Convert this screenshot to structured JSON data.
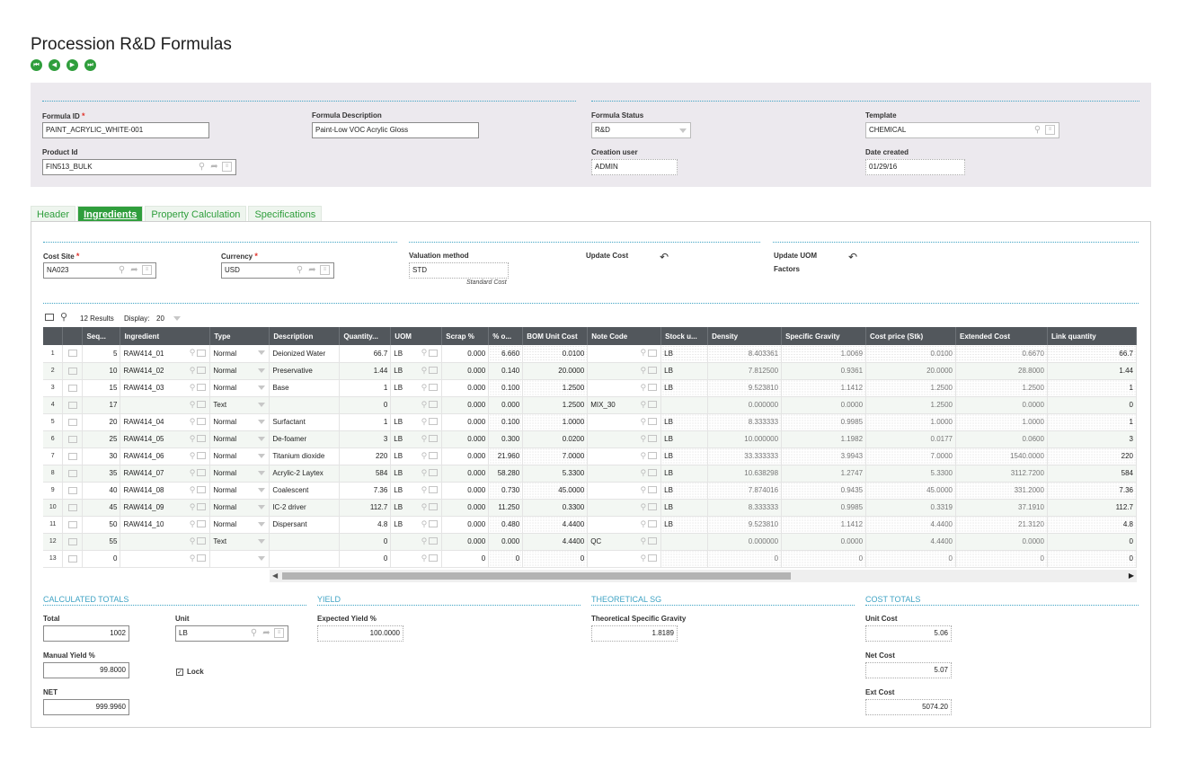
{
  "page": {
    "title": "Procession R&D Formulas"
  },
  "nav": {
    "first": "⏮",
    "prev": "◀",
    "next": "▶",
    "last": "⏭"
  },
  "header": {
    "formula_id_label": "Formula ID",
    "formula_id": "PAINT_ACRYLIC_WHITE-001",
    "formula_desc_label": "Formula Description",
    "formula_desc": "Paint-Low VOC Acrylic Gloss",
    "formula_status_label": "Formula Status",
    "formula_status": "R&D",
    "template_label": "Template",
    "template": "CHEMICAL",
    "product_id_label": "Product Id",
    "product_id": "FIN513_BULK",
    "creation_user_label": "Creation user",
    "creation_user": "ADMIN",
    "date_created_label": "Date created",
    "date_created": "01/29/16"
  },
  "tabs": [
    {
      "label": "Header"
    },
    {
      "label": "Ingredients"
    },
    {
      "label": "Property Calculation"
    },
    {
      "label": "Specifications"
    }
  ],
  "cost": {
    "cost_site_label": "Cost Site",
    "cost_site": "NA023",
    "currency_label": "Currency",
    "currency": "USD",
    "valuation_label": "Valuation method",
    "valuation": "STD",
    "valuation_hint": "Standard Cost",
    "update_cost_label": "Update Cost",
    "update_uom_label_1": "Update UOM",
    "update_uom_label_2": "Factors"
  },
  "grid_toolbar": {
    "results": "12 Results",
    "display_label": "Display:",
    "display_value": "20"
  },
  "columns": [
    "Seq...",
    "Ingredient",
    "Type",
    "Description",
    "Quantity...",
    "UOM",
    "Scrap %",
    "% o...",
    "BOM Unit Cost",
    "Note Code",
    "Stock u...",
    "Density",
    "Specific Gravity",
    "Cost price (Stk)",
    "Extended Cost",
    "Link quantity"
  ],
  "rows": [
    {
      "n": "1",
      "seq": "5",
      "ing": "RAW414_01",
      "type": "Normal",
      "desc": "Deionized Water",
      "qty": "66.7",
      "uom": "LB",
      "scrap": "0.000",
      "pct": "6.660",
      "bom": "0.0100",
      "note": "",
      "stk": "LB",
      "dens": "8.403361",
      "sg": "1.0069",
      "cp": "0.0100",
      "ext": "0.6670",
      "link": "66.7"
    },
    {
      "n": "2",
      "seq": "10",
      "ing": "RAW414_02",
      "type": "Normal",
      "desc": "Preservative",
      "qty": "1.44",
      "uom": "LB",
      "scrap": "0.000",
      "pct": "0.140",
      "bom": "20.0000",
      "note": "",
      "stk": "LB",
      "dens": "7.812500",
      "sg": "0.9361",
      "cp": "20.0000",
      "ext": "28.8000",
      "link": "1.44"
    },
    {
      "n": "3",
      "seq": "15",
      "ing": "RAW414_03",
      "type": "Normal",
      "desc": "Base",
      "qty": "1",
      "uom": "LB",
      "scrap": "0.000",
      "pct": "0.100",
      "bom": "1.2500",
      "note": "",
      "stk": "LB",
      "dens": "9.523810",
      "sg": "1.1412",
      "cp": "1.2500",
      "ext": "1.2500",
      "link": "1"
    },
    {
      "n": "4",
      "seq": "17",
      "ing": "",
      "type": "Text",
      "desc": "",
      "qty": "0",
      "uom": "",
      "scrap": "0.000",
      "pct": "0.000",
      "bom": "1.2500",
      "note": "MIX_30",
      "stk": "",
      "dens": "0.000000",
      "sg": "0.0000",
      "cp": "1.2500",
      "ext": "0.0000",
      "link": "0"
    },
    {
      "n": "5",
      "seq": "20",
      "ing": "RAW414_04",
      "type": "Normal",
      "desc": "Surfactant",
      "qty": "1",
      "uom": "LB",
      "scrap": "0.000",
      "pct": "0.100",
      "bom": "1.0000",
      "note": "",
      "stk": "LB",
      "dens": "8.333333",
      "sg": "0.9985",
      "cp": "1.0000",
      "ext": "1.0000",
      "link": "1"
    },
    {
      "n": "6",
      "seq": "25",
      "ing": "RAW414_05",
      "type": "Normal",
      "desc": "De-foamer",
      "qty": "3",
      "uom": "LB",
      "scrap": "0.000",
      "pct": "0.300",
      "bom": "0.0200",
      "note": "",
      "stk": "LB",
      "dens": "10.000000",
      "sg": "1.1982",
      "cp": "0.0177",
      "ext": "0.0600",
      "link": "3"
    },
    {
      "n": "7",
      "seq": "30",
      "ing": "RAW414_06",
      "type": "Normal",
      "desc": "Titanium dioxide",
      "qty": "220",
      "uom": "LB",
      "scrap": "0.000",
      "pct": "21.960",
      "bom": "7.0000",
      "note": "",
      "stk": "LB",
      "dens": "33.333333",
      "sg": "3.9943",
      "cp": "7.0000",
      "ext": "1540.0000",
      "link": "220"
    },
    {
      "n": "8",
      "seq": "35",
      "ing": "RAW414_07",
      "type": "Normal",
      "desc": "Acrylic-2 Laytex",
      "qty": "584",
      "uom": "LB",
      "scrap": "0.000",
      "pct": "58.280",
      "bom": "5.3300",
      "note": "",
      "stk": "LB",
      "dens": "10.638298",
      "sg": "1.2747",
      "cp": "5.3300",
      "ext": "3112.7200",
      "link": "584"
    },
    {
      "n": "9",
      "seq": "40",
      "ing": "RAW414_08",
      "type": "Normal",
      "desc": "Coalescent",
      "qty": "7.36",
      "uom": "LB",
      "scrap": "0.000",
      "pct": "0.730",
      "bom": "45.0000",
      "note": "",
      "stk": "LB",
      "dens": "7.874016",
      "sg": "0.9435",
      "cp": "45.0000",
      "ext": "331.2000",
      "link": "7.36"
    },
    {
      "n": "10",
      "seq": "45",
      "ing": "RAW414_09",
      "type": "Normal",
      "desc": "IC-2 driver",
      "qty": "112.7",
      "uom": "LB",
      "scrap": "0.000",
      "pct": "11.250",
      "bom": "0.3300",
      "note": "",
      "stk": "LB",
      "dens": "8.333333",
      "sg": "0.9985",
      "cp": "0.3319",
      "ext": "37.1910",
      "link": "112.7"
    },
    {
      "n": "11",
      "seq": "50",
      "ing": "RAW414_10",
      "type": "Normal",
      "desc": "Dispersant",
      "qty": "4.8",
      "uom": "LB",
      "scrap": "0.000",
      "pct": "0.480",
      "bom": "4.4400",
      "note": "",
      "stk": "LB",
      "dens": "9.523810",
      "sg": "1.1412",
      "cp": "4.4400",
      "ext": "21.3120",
      "link": "4.8"
    },
    {
      "n": "12",
      "seq": "55",
      "ing": "",
      "type": "Text",
      "desc": "",
      "qty": "0",
      "uom": "",
      "scrap": "0.000",
      "pct": "0.000",
      "bom": "4.4400",
      "note": "QC",
      "stk": "",
      "dens": "0.000000",
      "sg": "0.0000",
      "cp": "4.4400",
      "ext": "0.0000",
      "link": "0"
    },
    {
      "n": "13",
      "seq": "0",
      "ing": "",
      "type": "",
      "desc": "",
      "qty": "0",
      "uom": "",
      "scrap": "0",
      "pct": "0",
      "bom": "0",
      "note": "",
      "stk": "",
      "dens": "0",
      "sg": "0",
      "cp": "0",
      "ext": "0",
      "link": "0"
    }
  ],
  "totals": {
    "calc_title": "CALCULATED TOTALS",
    "total_label": "Total",
    "total": "1002",
    "unit_label": "Unit",
    "unit": "LB",
    "manual_yield_label": "Manual Yield %",
    "manual_yield": "99.8000",
    "lock_label": "Lock",
    "net_label": "NET",
    "net": "999.9960",
    "yield_title": "YIELD",
    "expected_yield_label": "Expected Yield %",
    "expected_yield": "100.0000",
    "sg_title": "THEORETICAL SG",
    "theo_sg_label": "Theoretical Specific Gravity",
    "theo_sg": "1.8189",
    "cost_title": "COST TOTALS",
    "unit_cost_label": "Unit Cost",
    "unit_cost": "5.06",
    "net_cost_label": "Net Cost",
    "net_cost": "5.07",
    "ext_cost_label": "Ext Cost",
    "ext_cost": "5074.20"
  }
}
